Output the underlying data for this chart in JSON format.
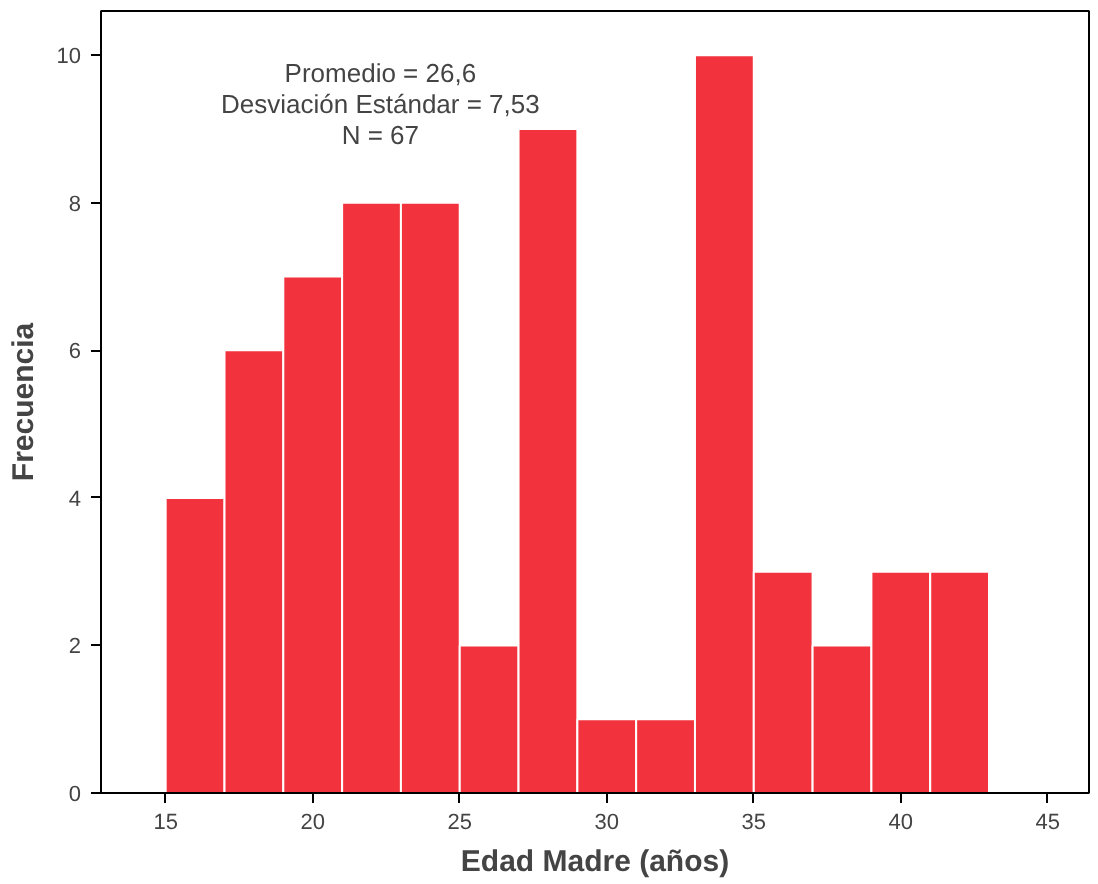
{
  "chart_data": {
    "type": "histogram",
    "xlabel": "Edad Madre (años)",
    "ylabel": "Frecuencia",
    "annotations": [
      "Promedio = 26,6",
      "Desviación Estándar = 7,53",
      "N = 67"
    ],
    "bins": [
      15,
      17,
      19,
      21,
      23,
      25,
      27,
      29,
      31,
      33,
      35,
      37,
      39,
      41,
      43
    ],
    "values": [
      4,
      6,
      7,
      8,
      8,
      2,
      9,
      1,
      1,
      10,
      3,
      2,
      3,
      3
    ],
    "color": "#f2333d",
    "xlim": [
      12.8,
      46.4
    ],
    "ylim": [
      0,
      10.6
    ],
    "xticks": [
      15,
      20,
      25,
      30,
      35,
      40,
      45
    ],
    "yticks": [
      0,
      2,
      4,
      6,
      8,
      10
    ],
    "grid": false
  }
}
